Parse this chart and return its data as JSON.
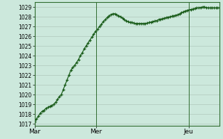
{
  "background_color": "#cce8dc",
  "plot_bg_color": "#cce8dc",
  "line_color": "#1a5c1a",
  "marker_color": "#1a5c1a",
  "grid_color": "#b0c8bc",
  "ylim_min": 1016.8,
  "ylim_max": 1029.5,
  "yticks": [
    1017,
    1018,
    1019,
    1020,
    1021,
    1022,
    1023,
    1024,
    1025,
    1026,
    1027,
    1028,
    1029
  ],
  "xtick_labels": [
    "Mar",
    "Mer",
    "Jeu"
  ],
  "vline_x": [
    0,
    0.333,
    0.833
  ],
  "y_values": [
    1017.2,
    1017.5,
    1017.8,
    1018.1,
    1018.3,
    1018.4,
    1018.6,
    1018.7,
    1018.8,
    1018.9,
    1019.0,
    1019.2,
    1019.5,
    1019.8,
    1020.0,
    1020.5,
    1021.0,
    1021.5,
    1022.0,
    1022.5,
    1022.8,
    1023.0,
    1023.3,
    1023.6,
    1024.0,
    1024.3,
    1024.7,
    1025.0,
    1025.3,
    1025.6,
    1025.9,
    1026.2,
    1026.5,
    1026.7,
    1027.0,
    1027.2,
    1027.5,
    1027.7,
    1027.9,
    1028.1,
    1028.2,
    1028.3,
    1028.3,
    1028.2,
    1028.1,
    1028.0,
    1027.85,
    1027.7,
    1027.6,
    1027.5,
    1027.4,
    1027.4,
    1027.35,
    1027.3,
    1027.3,
    1027.3,
    1027.3,
    1027.3,
    1027.3,
    1027.35,
    1027.4,
    1027.45,
    1027.5,
    1027.55,
    1027.6,
    1027.7,
    1027.75,
    1027.8,
    1027.85,
    1027.9,
    1027.95,
    1028.0,
    1028.05,
    1028.1,
    1028.15,
    1028.2,
    1028.3,
    1028.4,
    1028.5,
    1028.6,
    1028.65,
    1028.7,
    1028.75,
    1028.8,
    1028.85,
    1028.9,
    1028.9,
    1028.95,
    1029.0,
    1029.0,
    1028.95,
    1028.9,
    1028.9,
    1028.9,
    1028.9,
    1028.9,
    1028.9,
    1028.9
  ]
}
